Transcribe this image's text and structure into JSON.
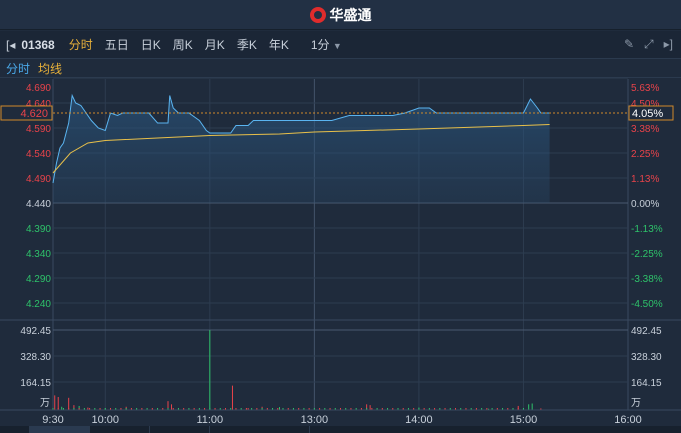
{
  "header": {
    "brand": "华盛通",
    "logo_icon": "huashengtong-logo"
  },
  "toolbar": {
    "code": "01368",
    "tabs": [
      "分时",
      "五日",
      "日K",
      "周K",
      "月K",
      "季K",
      "年K"
    ],
    "active": "分时",
    "interval": "1分",
    "icons": [
      "collapse-left-icon",
      "pencil-icon",
      "fullscreen-icon",
      "expand-right-icon"
    ]
  },
  "legend": {
    "price": "分时",
    "avg": "均线"
  },
  "colors": {
    "up": "#e8434a",
    "down": "#2ec26a",
    "price_line": "#5ab4f0",
    "avg_line": "#e8c04a",
    "accent": "#d08a2a"
  },
  "price_axis": {
    "left": [
      "4.690",
      "4.640",
      "4.590",
      "4.540",
      "4.490",
      "4.440",
      "4.390",
      "4.340",
      "4.290",
      "4.240"
    ],
    "right": [
      "5.63%",
      "4.50%",
      "3.38%",
      "2.25%",
      "1.13%",
      "0.00%",
      "-1.13%",
      "-2.25%",
      "-3.38%",
      "-4.50%"
    ],
    "prev_close": 4.44,
    "current": "4.620",
    "current_pct": "4.05%"
  },
  "volume_axis": {
    "labels": [
      "492.45",
      "328.30",
      "164.15"
    ],
    "unit": "万"
  },
  "time_axis": [
    "9:30",
    "10:00",
    "11:00",
    "13:00",
    "14:00",
    "15:00",
    "16:00"
  ],
  "chart_data": {
    "type": "line",
    "price": [
      [
        "9:30",
        4.48
      ],
      [
        "9:32",
        4.52
      ],
      [
        "9:34",
        4.55
      ],
      [
        "9:36",
        4.56
      ],
      [
        "9:39",
        4.6
      ],
      [
        "9:41",
        4.655
      ],
      [
        "9:43",
        4.64
      ],
      [
        "9:46",
        4.635
      ],
      [
        "9:49",
        4.62
      ],
      [
        "9:52",
        4.605
      ],
      [
        "9:56",
        4.59
      ],
      [
        "10:00",
        4.585
      ],
      [
        "10:03",
        4.62
      ],
      [
        "10:07",
        4.615
      ],
      [
        "10:10",
        4.62
      ],
      [
        "10:15",
        4.62
      ],
      [
        "10:25",
        4.62
      ],
      [
        "10:30",
        4.6
      ],
      [
        "10:36",
        4.6
      ],
      [
        "10:37",
        4.655
      ],
      [
        "10:39",
        4.63
      ],
      [
        "10:42",
        4.62
      ],
      [
        "10:48",
        4.62
      ],
      [
        "10:54",
        4.605
      ],
      [
        "10:58",
        4.585
      ],
      [
        "11:00",
        4.58
      ],
      [
        "11:12",
        4.58
      ],
      [
        "11:15",
        4.595
      ],
      [
        "11:22",
        4.595
      ],
      [
        "11:25",
        4.605
      ],
      [
        "11:40",
        4.605
      ],
      [
        "13:00",
        4.605
      ],
      [
        "13:10",
        4.605
      ],
      [
        "13:20",
        4.615
      ],
      [
        "13:45",
        4.615
      ],
      [
        "13:52",
        4.62
      ],
      [
        "14:00",
        4.63
      ],
      [
        "14:06",
        4.63
      ],
      [
        "14:10",
        4.62
      ],
      [
        "14:40",
        4.62
      ],
      [
        "15:00",
        4.62
      ],
      [
        "15:04",
        4.648
      ],
      [
        "15:08",
        4.63
      ],
      [
        "15:10",
        4.62
      ],
      [
        "15:15",
        4.62
      ]
    ],
    "avg": [
      [
        "9:30",
        4.5
      ],
      [
        "9:40",
        4.54
      ],
      [
        "9:50",
        4.56
      ],
      [
        "10:00",
        4.565
      ],
      [
        "10:30",
        4.57
      ],
      [
        "11:00",
        4.575
      ],
      [
        "11:40",
        4.578
      ],
      [
        "13:00",
        4.582
      ],
      [
        "14:00",
        4.588
      ],
      [
        "15:00",
        4.595
      ],
      [
        "15:15",
        4.597
      ]
    ],
    "volume": [
      [
        "9:31",
        90,
        "up"
      ],
      [
        "9:33",
        80,
        "up"
      ],
      [
        "9:35",
        20,
        "down"
      ],
      [
        "9:39",
        75,
        "up"
      ],
      [
        "9:42",
        30,
        "up"
      ],
      [
        "9:45",
        25,
        "down"
      ],
      [
        "9:50",
        15,
        "up"
      ],
      [
        "10:00",
        10,
        "down"
      ],
      [
        "10:12",
        20,
        "up"
      ],
      [
        "10:36",
        55,
        "up"
      ],
      [
        "10:38",
        35,
        "up"
      ],
      [
        "11:00",
        492,
        "down"
      ],
      [
        "11:08",
        5,
        "up"
      ],
      [
        "11:13",
        150,
        "up"
      ],
      [
        "11:22",
        12,
        "up"
      ],
      [
        "11:30",
        20,
        "up"
      ],
      [
        "11:40",
        18,
        "down"
      ],
      [
        "13:30",
        35,
        "up"
      ],
      [
        "13:32",
        30,
        "up"
      ],
      [
        "14:00",
        15,
        "down"
      ],
      [
        "14:40",
        8,
        "down"
      ],
      [
        "14:57",
        25,
        "up"
      ],
      [
        "15:03",
        35,
        "down"
      ],
      [
        "15:05",
        40,
        "down"
      ],
      [
        "15:10",
        10,
        "up"
      ]
    ]
  }
}
